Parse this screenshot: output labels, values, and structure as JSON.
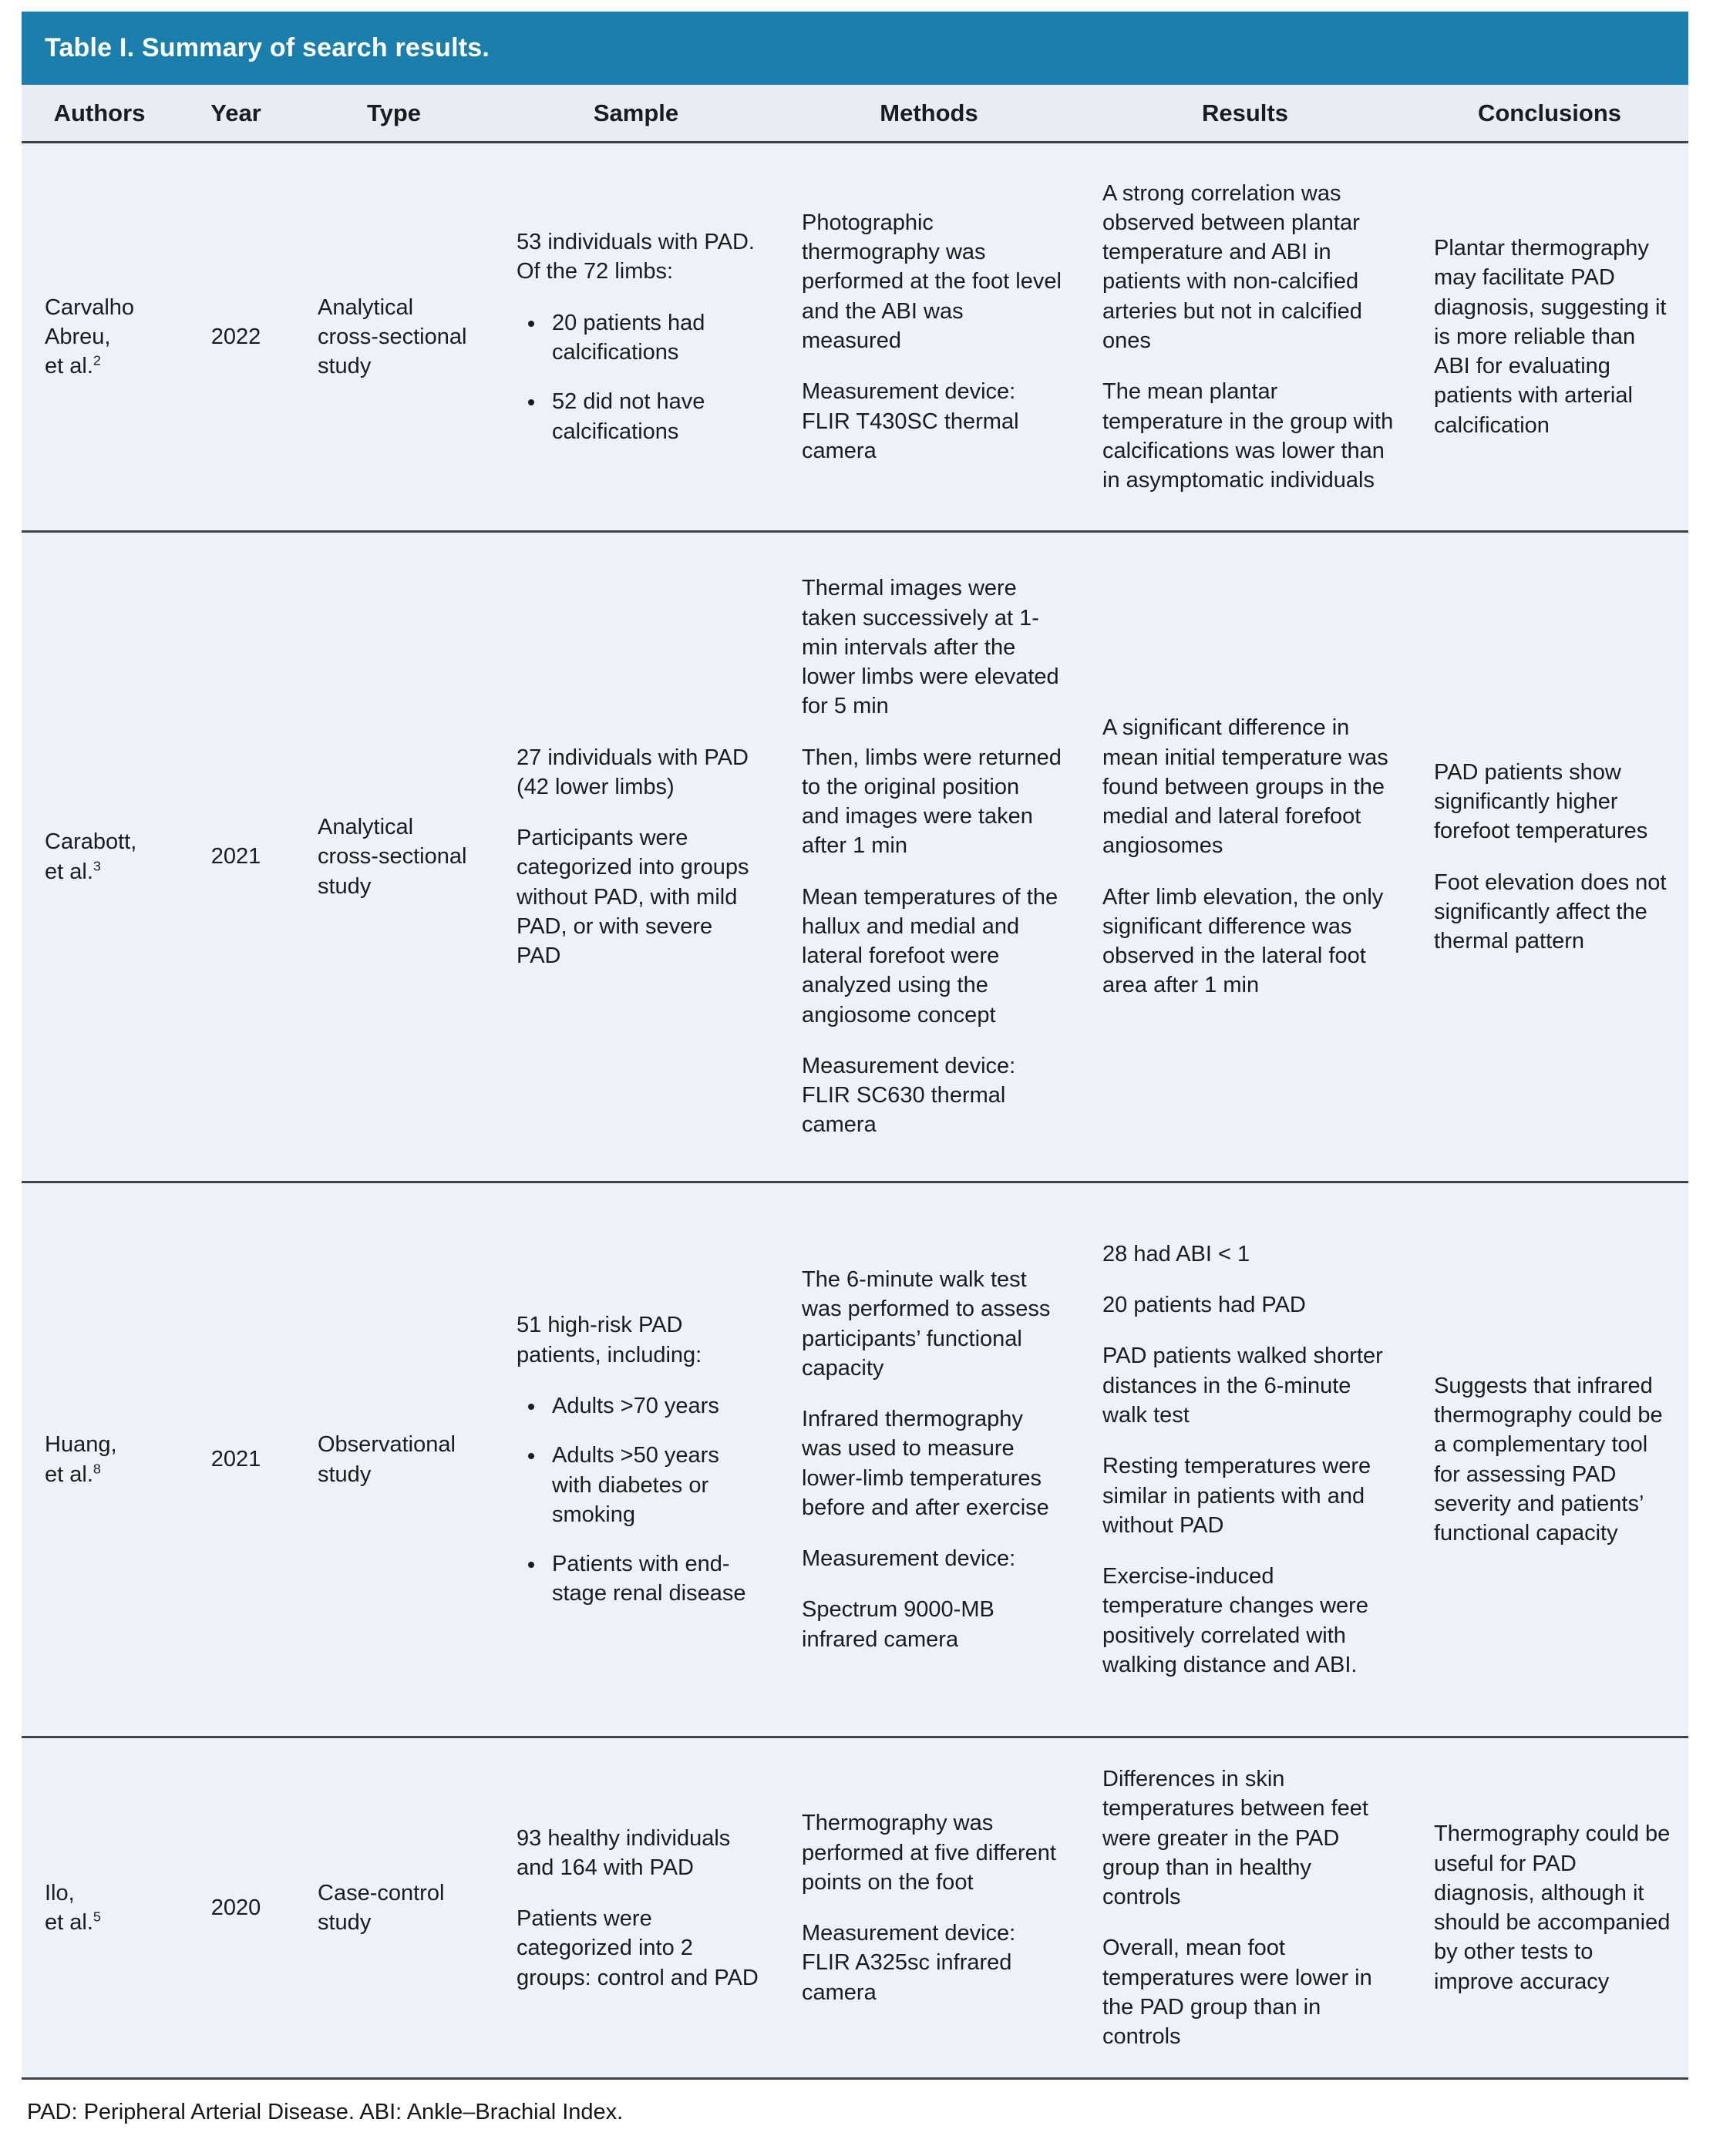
{
  "colors": {
    "title_bar": "#1b7fae",
    "header_row_bg": "#e8edf5",
    "body_bg": "#edf1f8",
    "divider": "#3f4347"
  },
  "table": {
    "title": "Table I. Summary of search results.",
    "columns": [
      "Authors",
      "Year",
      "Type",
      "Sample",
      "Methods",
      "Results",
      "Conclusions"
    ],
    "footnote": "PAD: Peripheral Arterial Disease. ABI: Ankle–Brachial Index."
  },
  "rows": [
    {
      "authors_name": "Carvalho Abreu,",
      "authors_etal": "et al.",
      "authors_ref": "2",
      "year": "2022",
      "type": "Analytical cross-sectional study",
      "sample_intro": "53 individuals with PAD. Of the 72 limbs:",
      "sample_bullets": [
        "20 patients had calcifications",
        "52 did not have calcifications"
      ],
      "methods": [
        "Photographic thermography was performed at the foot level and the ABI was measured",
        "Measurement device: FLIR T430SC thermal camera"
      ],
      "results": [
        "A strong correlation was observed between plantar temperature and ABI in patients with non-calcified arteries but not in calcified ones",
        "The mean plantar temperature in the group with calcifications was lower than in asymptomatic individuals"
      ],
      "conclusions": [
        "Plantar thermography may facilitate PAD diagnosis, suggesting it is more reliable than ABI for evaluating patients with arterial calcification"
      ]
    },
    {
      "authors_name": "Carabott,",
      "authors_etal": "et al.",
      "authors_ref": "3",
      "year": "2021",
      "type": "Analytical cross-sectional study",
      "sample_paragraphs": [
        "27 individuals with PAD (42 lower limbs)",
        "Participants were categorized into groups without PAD, with mild PAD, or with severe PAD"
      ],
      "methods": [
        "Thermal images were taken successively at 1-min intervals after the lower limbs were elevated for 5 min",
        "Then, limbs were returned to the original position and images were taken after 1 min",
        "Mean temperatures of the hallux and medial and lateral forefoot were analyzed using the angiosome concept",
        "Measurement device: FLIR SC630 thermal camera"
      ],
      "results": [
        "A significant difference in mean initial temperature was found between groups in the medial and lateral forefoot angiosomes",
        "After limb elevation, the only significant difference was observed in the lateral foot area after 1 min"
      ],
      "conclusions": [
        "PAD patients show significantly higher forefoot temperatures",
        "Foot elevation does not significantly affect the thermal pattern"
      ]
    },
    {
      "authors_name": "Huang,",
      "authors_etal": "et al.",
      "authors_ref": "8",
      "year": "2021",
      "type": "Observational study",
      "sample_intro": "51 high-risk PAD patients, including:",
      "sample_bullets": [
        "Adults >70 years",
        "Adults >50 years with diabetes or smoking",
        "Patients with end-stage renal disease"
      ],
      "methods": [
        "The 6-minute walk test was performed to assess participants’ functional capacity",
        "Infrared thermography was used to measure lower-limb temperatures before and after exercise",
        "Measurement device:",
        "Spectrum 9000-MB infrared camera"
      ],
      "results": [
        "28 had ABI < 1",
        "20 patients had PAD",
        "PAD patients walked shorter distances in the 6-minute walk test",
        "Resting temperatures were similar in patients with and without PAD",
        "Exercise-induced temperature changes were positively correlated with walking distance and ABI."
      ],
      "conclusions": [
        "Suggests that infrared thermography could be a complementary tool for assessing PAD severity and patients’ functional capacity"
      ]
    },
    {
      "authors_name": "Ilo,",
      "authors_etal": "et al.",
      "authors_ref": "5",
      "year": "2020",
      "type": "Case-control study",
      "sample_paragraphs": [
        "93 healthy individuals and 164 with PAD",
        "Patients were categorized into 2 groups: control and PAD"
      ],
      "methods": [
        "Thermography was performed at five different points on the foot",
        "Measurement device: FLIR A325sc infrared camera"
      ],
      "results": [
        "Differences in skin temperatures between feet were greater in the PAD group than in healthy controls",
        "Overall, mean foot temperatures were lower in the PAD group than in controls"
      ],
      "conclusions": [
        "Thermography could be useful for PAD diagnosis, although it should be accompanied by other tests to improve accuracy"
      ]
    }
  ]
}
